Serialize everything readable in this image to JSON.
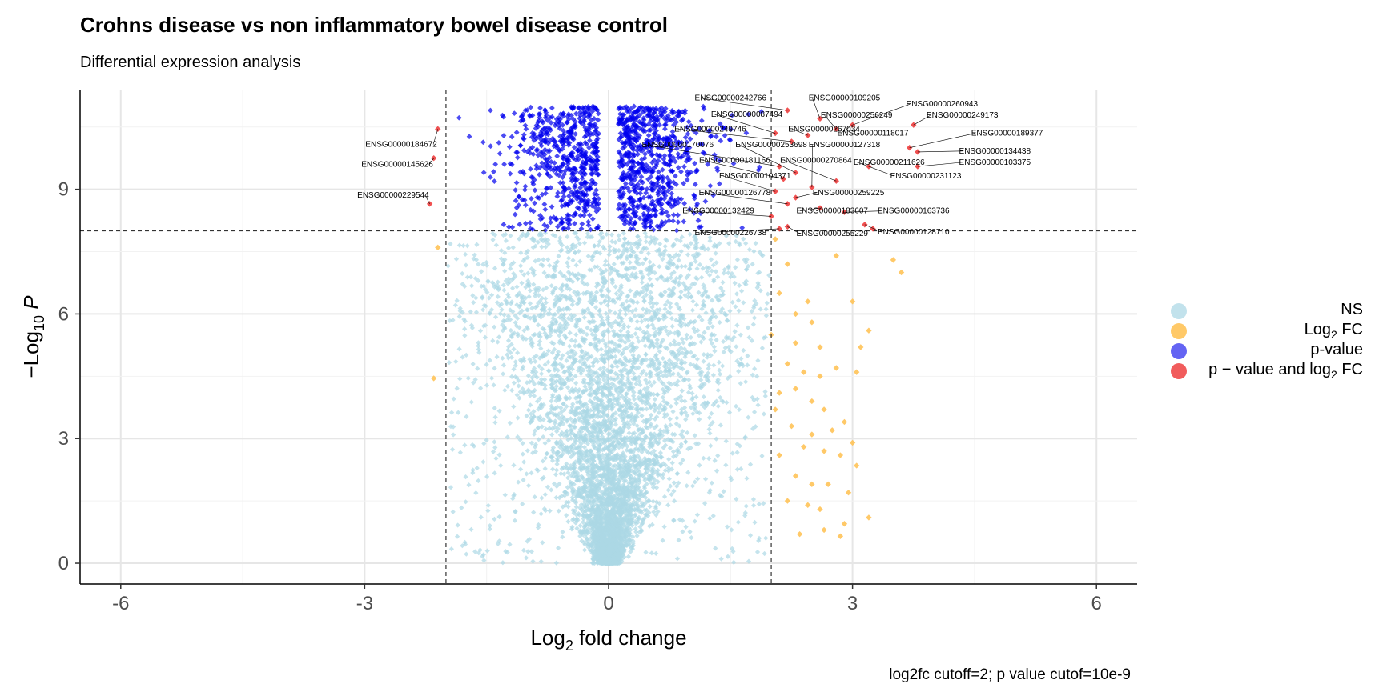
{
  "title": "Crohns disease vs non inflammatory bowel disease control",
  "subtitle": "Differential expression analysis",
  "caption": "log2fc cutoff=2; p value cutof=10e-9",
  "legend": {
    "ns": "NS",
    "log2fc_prefix": "Log",
    "log2fc_sub": "2",
    "log2fc_suffix": " FC",
    "pvalue": "p-value",
    "both_prefix": "p − value and log",
    "both_sub": "2",
    "both_suffix": " FC"
  },
  "chart_data": {
    "type": "scatter",
    "title": "Crohns disease vs non inflammatory bowel disease control",
    "subtitle": "Differential expression analysis",
    "xlabel": "Log2 fold change",
    "ylabel": "−Log10 P",
    "xlim": [
      -6.5,
      6.5
    ],
    "ylim": [
      -0.5,
      11.4
    ],
    "xticks": [
      -6,
      -3,
      0,
      3,
      6
    ],
    "xtick_labels": [
      "-6",
      "-3",
      "0",
      "3",
      "6"
    ],
    "yticks": [
      0,
      3,
      6,
      9
    ],
    "ytick_labels": [
      "0",
      "3",
      "6",
      "9"
    ],
    "grid": true,
    "legend_position": "right",
    "cutoffs": {
      "log2fc": 2,
      "minus_log10_p": 8
    },
    "colors": {
      "NS": "#add8e6",
      "Log2 FC": "#ffc04d",
      "p-value": "#0000ee",
      "p - value and log2 FC": "#ee3333"
    },
    "series": [
      {
        "name": "NS",
        "color": "#add8e6",
        "note_points": "dense cloud of ~20000 genes with |log2FC| < 2 and -log10P < 8"
      },
      {
        "name": "Log2 FC",
        "color": "#ffc04d",
        "points": [
          [
            -2.1,
            7.6
          ],
          [
            -2.15,
            4.45
          ],
          [
            2.05,
            7.8
          ],
          [
            2.2,
            7.2
          ],
          [
            2.45,
            6.3
          ],
          [
            2.8,
            7.4
          ],
          [
            3.5,
            7.3
          ],
          [
            3.6,
            7.0
          ],
          [
            2.1,
            6.5
          ],
          [
            2.3,
            6.0
          ],
          [
            2.5,
            5.8
          ],
          [
            2.0,
            5.5
          ],
          [
            2.3,
            5.3
          ],
          [
            2.6,
            5.2
          ],
          [
            3.0,
            6.3
          ],
          [
            3.2,
            5.6
          ],
          [
            3.1,
            5.2
          ],
          [
            2.2,
            4.8
          ],
          [
            2.4,
            4.6
          ],
          [
            2.6,
            4.5
          ],
          [
            2.8,
            4.7
          ],
          [
            3.05,
            4.6
          ],
          [
            2.1,
            4.1
          ],
          [
            2.3,
            4.2
          ],
          [
            2.5,
            3.9
          ],
          [
            2.65,
            3.7
          ],
          [
            2.9,
            3.4
          ],
          [
            2.05,
            3.7
          ],
          [
            2.25,
            3.3
          ],
          [
            2.5,
            3.1
          ],
          [
            2.75,
            3.2
          ],
          [
            3.0,
            2.9
          ],
          [
            2.4,
            2.8
          ],
          [
            2.65,
            2.7
          ],
          [
            2.85,
            2.6
          ],
          [
            2.1,
            2.6
          ],
          [
            2.3,
            2.1
          ],
          [
            2.5,
            1.9
          ],
          [
            2.7,
            1.9
          ],
          [
            2.95,
            1.7
          ],
          [
            2.2,
            1.5
          ],
          [
            2.45,
            1.4
          ],
          [
            2.6,
            1.3
          ],
          [
            2.9,
            0.95
          ],
          [
            2.65,
            0.8
          ],
          [
            2.85,
            0.65
          ],
          [
            3.2,
            1.1
          ],
          [
            3.05,
            2.35
          ],
          [
            2.35,
            0.7
          ]
        ]
      },
      {
        "name": "p-value",
        "color": "#0000ee",
        "note_points": "~1300 genes with -log10P between 8 and 11 and |log2FC| < 2"
      },
      {
        "name": "p - value and log2 FC",
        "color": "#ee3333",
        "points": [
          [
            -2.1,
            10.45
          ],
          [
            -2.15,
            9.75
          ],
          [
            -2.2,
            8.65
          ],
          [
            2.2,
            10.9
          ],
          [
            2.05,
            10.35
          ],
          [
            2.25,
            10.15
          ],
          [
            2.45,
            10.3
          ],
          [
            2.6,
            10.7
          ],
          [
            2.8,
            10.45
          ],
          [
            3.0,
            10.55
          ],
          [
            3.75,
            10.55
          ],
          [
            3.7,
            10.0
          ],
          [
            3.8,
            9.9
          ],
          [
            2.1,
            9.55
          ],
          [
            2.3,
            9.4
          ],
          [
            2.15,
            9.25
          ],
          [
            2.5,
            9.05
          ],
          [
            2.8,
            9.2
          ],
          [
            3.2,
            9.55
          ],
          [
            2.05,
            8.95
          ],
          [
            2.3,
            8.8
          ],
          [
            2.6,
            8.55
          ],
          [
            2.2,
            8.65
          ],
          [
            2.0,
            8.35
          ],
          [
            2.2,
            8.1
          ],
          [
            2.1,
            8.05
          ],
          [
            2.9,
            8.45
          ],
          [
            3.15,
            8.15
          ],
          [
            3.25,
            8.05
          ],
          [
            3.8,
            9.55
          ]
        ]
      }
    ],
    "labels": [
      {
        "text": "ENSG00000184672",
        "x": -2.1,
        "y": 10.45
      },
      {
        "text": "ENSG00000145626",
        "x": -2.15,
        "y": 9.75
      },
      {
        "text": "ENSG00000229544",
        "x": -2.2,
        "y": 8.65
      },
      {
        "text": "ENSG00000242766",
        "x": 2.2,
        "y": 10.9
      },
      {
        "text": "ENSG00000109205",
        "x": 2.6,
        "y": 10.7
      },
      {
        "text": "ENSG00000260943",
        "x": 3.0,
        "y": 10.55
      },
      {
        "text": "ENSG00000087494",
        "x": 2.05,
        "y": 10.35
      },
      {
        "text": "ENSG00000256249",
        "x": 2.8,
        "y": 10.45
      },
      {
        "text": "ENSG00000249173",
        "x": 3.75,
        "y": 10.55
      },
      {
        "text": "ENSG00000249746",
        "x": 2.25,
        "y": 10.15
      },
      {
        "text": "ENSG00000267034",
        "x": 2.45,
        "y": 10.3
      },
      {
        "text": "ENSG00000118017",
        "x": 3.0,
        "y": 10.55
      },
      {
        "text": "ENSG00000189377",
        "x": 3.7,
        "y": 10.0
      },
      {
        "text": "ENSG00000170076",
        "x": 2.1,
        "y": 9.55
      },
      {
        "text": "ENSG00000253698",
        "x": 2.3,
        "y": 9.4
      },
      {
        "text": "ENSG00000127318",
        "x": 2.5,
        "y": 9.05
      },
      {
        "text": "ENSG00000134438",
        "x": 3.8,
        "y": 9.9
      },
      {
        "text": "ENSG00000181166",
        "x": 2.15,
        "y": 9.25
      },
      {
        "text": "ENSG00000270864",
        "x": 2.8,
        "y": 9.2
      },
      {
        "text": "ENSG00000211626",
        "x": 3.2,
        "y": 9.55
      },
      {
        "text": "ENSG00000103375",
        "x": 3.8,
        "y": 9.55
      },
      {
        "text": "ENSG00000104371",
        "x": 2.05,
        "y": 8.95
      },
      {
        "text": "ENSG00000231123",
        "x": 3.2,
        "y": 9.55
      },
      {
        "text": "ENSG00000126778",
        "x": 2.2,
        "y": 8.65
      },
      {
        "text": "ENSG00000259225",
        "x": 2.3,
        "y": 8.8
      },
      {
        "text": "ENSG00000132429",
        "x": 2.0,
        "y": 8.35
      },
      {
        "text": "ENSG00000183607",
        "x": 2.6,
        "y": 8.55
      },
      {
        "text": "ENSG00000163736",
        "x": 2.9,
        "y": 8.45
      },
      {
        "text": "ENSG00000226738",
        "x": 2.1,
        "y": 8.05
      },
      {
        "text": "ENSG00000255229",
        "x": 2.2,
        "y": 8.1
      },
      {
        "text": "ENSG00000128710",
        "x": 3.15,
        "y": 8.15
      }
    ]
  }
}
